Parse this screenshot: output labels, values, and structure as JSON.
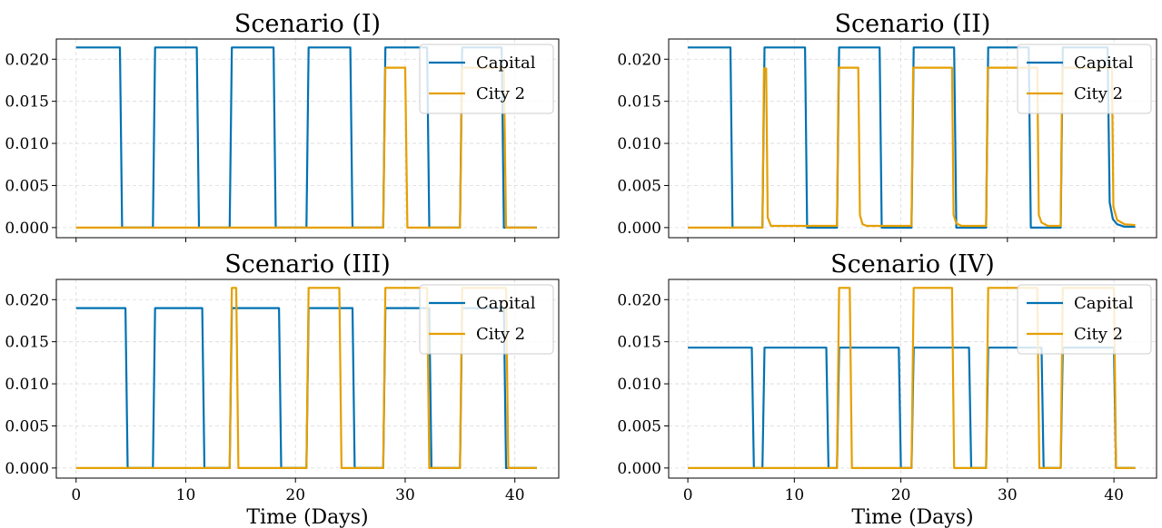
{
  "chart_data": [
    {
      "type": "line",
      "title": "Scenario (I)",
      "xlabel": "",
      "ylabel": "",
      "xlim": [
        -1.8,
        44
      ],
      "ylim": [
        -0.0012,
        0.0224
      ],
      "xticks": [
        0,
        10,
        20,
        30,
        40
      ],
      "yticks": [
        "0.000",
        "0.005",
        "0.010",
        "0.015",
        "0.020"
      ],
      "show_xtick_labels": false,
      "grid": true,
      "legend": "top-right",
      "series": [
        {
          "name": "Capital",
          "color": "#0072B2",
          "x": [
            0,
            4,
            4.2,
            7,
            7.2,
            11,
            11.2,
            14,
            14.2,
            18,
            18.2,
            21,
            21.2,
            25,
            25.2,
            28,
            28.2,
            32,
            32.2,
            35,
            35.2,
            38.8,
            39,
            42
          ],
          "y": [
            0.0214,
            0.0214,
            0,
            0,
            0.0214,
            0.0214,
            0,
            0,
            0.0214,
            0.0214,
            0,
            0,
            0.0214,
            0.0214,
            0,
            0,
            0.0214,
            0.0214,
            0,
            0,
            0.0214,
            0.0214,
            0,
            0
          ]
        },
        {
          "name": "City 2",
          "color": "#E69F00",
          "x": [
            0,
            28,
            28.2,
            30,
            30.2,
            35,
            35.2,
            39,
            39.2,
            42
          ],
          "y": [
            0,
            0,
            0.019,
            0.019,
            0,
            0,
            0.019,
            0.019,
            0,
            0
          ]
        }
      ]
    },
    {
      "type": "line",
      "title": "Scenario (II)",
      "xlabel": "",
      "ylabel": "",
      "xlim": [
        -1.8,
        44
      ],
      "ylim": [
        -0.0012,
        0.0224
      ],
      "xticks": [
        0,
        10,
        20,
        30,
        40
      ],
      "yticks": [
        "0.000",
        "0.005",
        "0.010",
        "0.015",
        "0.020"
      ],
      "show_xtick_labels": false,
      "grid": true,
      "legend": "top-right",
      "series": [
        {
          "name": "Capital",
          "color": "#0072B2",
          "x": [
            0,
            4,
            4.2,
            7,
            7.2,
            11,
            11.2,
            14,
            14.2,
            18,
            18.2,
            21,
            21.2,
            25,
            25.2,
            28,
            28.2,
            32,
            32.2,
            35,
            35.2,
            39.4,
            39.6,
            39.9,
            40.3,
            41,
            42
          ],
          "y": [
            0.0214,
            0.0214,
            0,
            0,
            0.0214,
            0.0214,
            0,
            0,
            0.0214,
            0.0214,
            0,
            0,
            0.0214,
            0.0214,
            0,
            0,
            0.0214,
            0.0214,
            0,
            0,
            0.0214,
            0.0214,
            0.003,
            0.001,
            0.0004,
            0.0001,
            0.0001
          ]
        },
        {
          "name": "City 2",
          "color": "#E69F00",
          "x": [
            0,
            7,
            7.15,
            7.35,
            7.5,
            7.8,
            14,
            14.15,
            16,
            16.15,
            16.4,
            16.8,
            21,
            21.15,
            24.8,
            24.95,
            25.2,
            25.7,
            28,
            28.15,
            32.8,
            32.95,
            33.2,
            33.8,
            35,
            35.15,
            39.8,
            39.95,
            40.3,
            41,
            42
          ],
          "y": [
            0,
            0,
            0.0189,
            0.0189,
            0.0012,
            0.0002,
            0.0002,
            0.019,
            0.019,
            0.0015,
            0.0004,
            0.0002,
            0.0002,
            0.019,
            0.019,
            0.0015,
            0.0005,
            0.0002,
            0.0002,
            0.019,
            0.019,
            0.0015,
            0.0006,
            0.0002,
            0.0002,
            0.019,
            0.019,
            0.0025,
            0.0009,
            0.0004,
            0.0003
          ]
        }
      ]
    },
    {
      "type": "line",
      "title": "Scenario (III)",
      "xlabel": "Time (Days)",
      "ylabel": "",
      "xlim": [
        -1.8,
        44
      ],
      "ylim": [
        -0.0012,
        0.0224
      ],
      "xticks": [
        0,
        10,
        20,
        30,
        40
      ],
      "yticks": [
        "0.000",
        "0.005",
        "0.010",
        "0.015",
        "0.020"
      ],
      "show_xtick_labels": true,
      "grid": true,
      "legend": "top-right",
      "series": [
        {
          "name": "Capital",
          "color": "#0072B2",
          "x": [
            0,
            4.5,
            4.7,
            7,
            7.2,
            11.5,
            11.7,
            14,
            14.2,
            18.5,
            18.7,
            21,
            21.2,
            25.2,
            25.4,
            28,
            28.2,
            32.2,
            32.4,
            35,
            35.2,
            39,
            39.2,
            42
          ],
          "y": [
            0.019,
            0.019,
            0,
            0,
            0.019,
            0.019,
            0,
            0,
            0.019,
            0.019,
            0,
            0,
            0.019,
            0.019,
            0,
            0,
            0.019,
            0.019,
            0,
            0,
            0.019,
            0.019,
            0,
            0
          ]
        },
        {
          "name": "City 2",
          "color": "#E69F00",
          "x": [
            0,
            14,
            14.2,
            14.6,
            14.8,
            21,
            21.2,
            24,
            24.2,
            28,
            28.2,
            32,
            32.2,
            35,
            35.2,
            39.2,
            39.4,
            42
          ],
          "y": [
            0,
            0,
            0.0214,
            0.0214,
            0,
            0,
            0.0214,
            0.0214,
            0,
            0,
            0.0214,
            0.0214,
            0,
            0,
            0.0214,
            0.0214,
            0,
            0
          ]
        }
      ]
    },
    {
      "type": "line",
      "title": "Scenario (IV)",
      "xlabel": "Time (Days)",
      "ylabel": "",
      "xlim": [
        -1.8,
        44
      ],
      "ylim": [
        -0.0012,
        0.0224
      ],
      "xticks": [
        0,
        10,
        20,
        30,
        40
      ],
      "yticks": [
        "0.000",
        "0.005",
        "0.010",
        "0.015",
        "0.020"
      ],
      "show_xtick_labels": true,
      "grid": true,
      "legend": "top-right",
      "series": [
        {
          "name": "Capital",
          "color": "#0072B2",
          "x": [
            0,
            6,
            6.2,
            7,
            7.2,
            13,
            13.2,
            14,
            14.2,
            19.8,
            20,
            21,
            21.2,
            26.4,
            26.6,
            28,
            28.2,
            33.2,
            33.4,
            35,
            35.2,
            40,
            40.2,
            42
          ],
          "y": [
            0.0143,
            0.0143,
            0,
            0,
            0.0143,
            0.0143,
            0,
            0,
            0.0143,
            0.0143,
            0,
            0,
            0.0143,
            0.0143,
            0,
            0,
            0.0143,
            0.0143,
            0,
            0,
            0.0143,
            0.0143,
            0,
            0
          ]
        },
        {
          "name": "City 2",
          "color": "#E69F00",
          "x": [
            0,
            14,
            14.2,
            15.2,
            15.4,
            21,
            21.2,
            24.8,
            25,
            28,
            28.2,
            32.8,
            33,
            35,
            35.2,
            40,
            40.2,
            42
          ],
          "y": [
            0,
            0,
            0.0214,
            0.0214,
            0,
            0,
            0.0214,
            0.0214,
            0,
            0,
            0.0214,
            0.0214,
            0,
            0,
            0.0214,
            0.0214,
            0,
            0
          ]
        }
      ]
    }
  ]
}
